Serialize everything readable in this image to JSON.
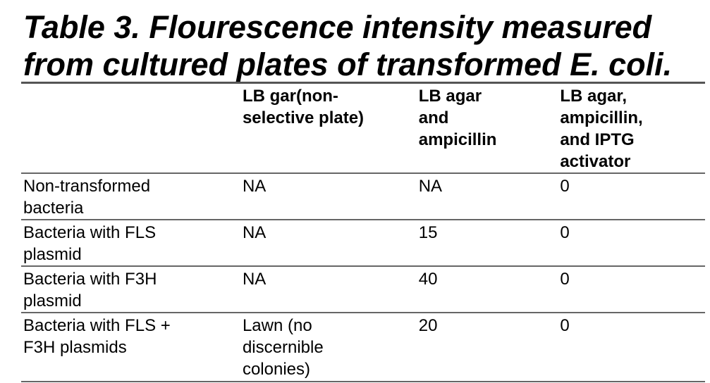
{
  "title": "Table 3. Flourescence intensity measured from cultured plates of transformed E. coli.",
  "table": {
    "header": [
      "LB gar(non-selective plate)",
      "LB agar and ampicillin",
      "LB agar, ampicillin, and IPTG activator"
    ],
    "rows": [
      {
        "label": "Non-transformed bacteria",
        "cells": [
          "NA",
          "NA",
          0
        ]
      },
      {
        "label": "Bacteria with FLS plasmid",
        "cells": [
          "NA",
          15,
          0
        ]
      },
      {
        "label": "Bacteria with F3H plasmid",
        "cells": [
          "NA",
          40,
          0
        ]
      },
      {
        "label": "Bacteria with FLS + F3H plasmids",
        "cells": [
          "Lawn (no discernible colonies)",
          20,
          0
        ]
      }
    ]
  }
}
